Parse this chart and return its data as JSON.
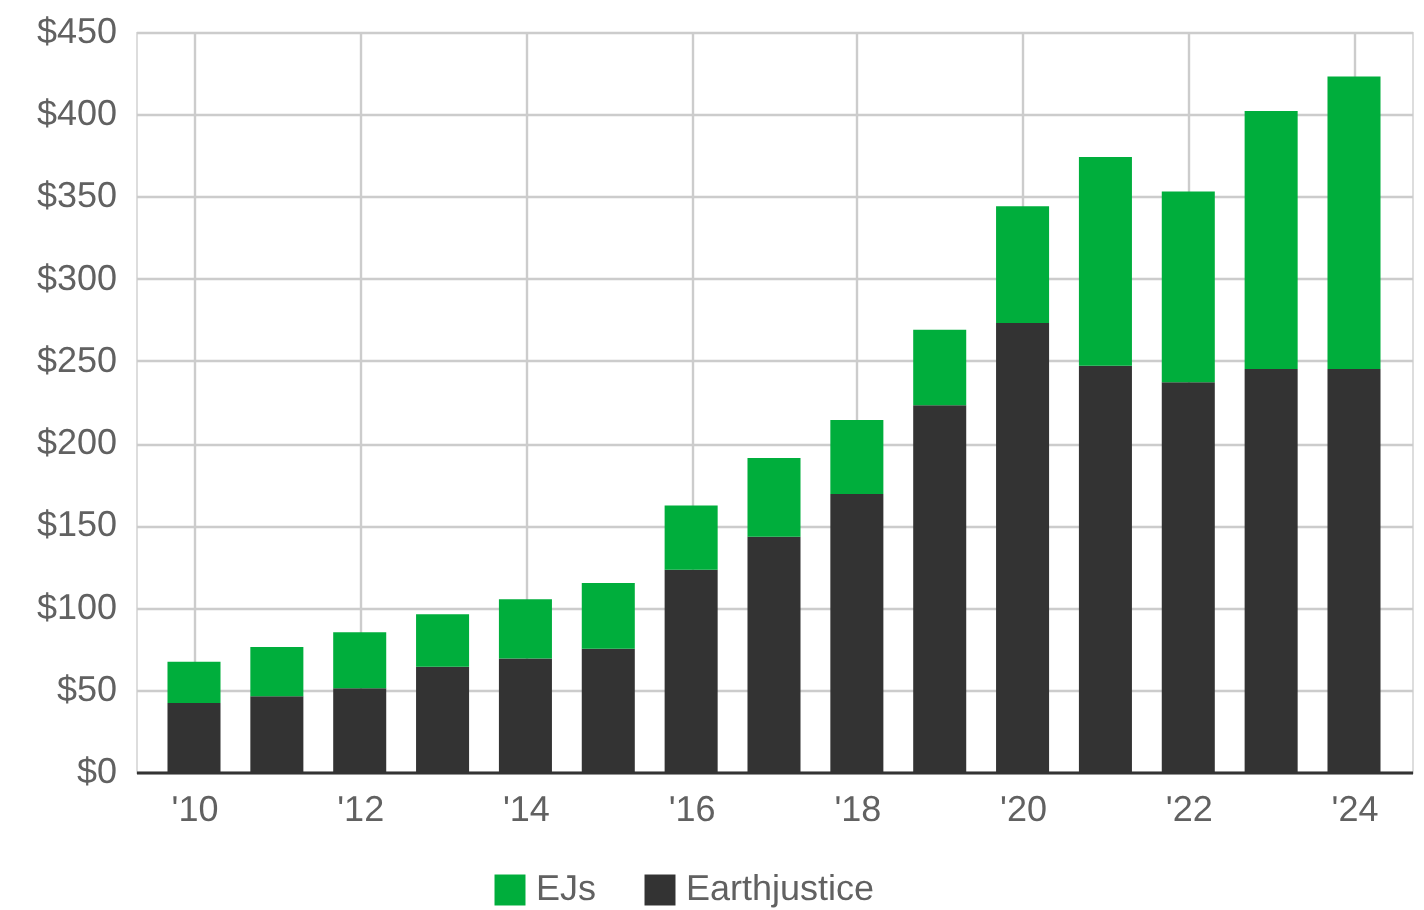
{
  "chart_data": {
    "type": "bar",
    "stacked": true,
    "x": [
      2010,
      2011,
      2012,
      2013,
      2014,
      2015,
      2016,
      2017,
      2018,
      2019,
      2020,
      2021,
      2022,
      2023,
      2024
    ],
    "series": [
      {
        "name": "Earthjustice",
        "color": "#333333",
        "values": [
          42,
          46,
          51,
          64,
          69,
          75,
          123,
          143,
          169,
          223,
          273,
          247,
          237,
          245,
          245
        ]
      },
      {
        "name": "EJs",
        "color": "#00ae3c",
        "values": [
          25,
          30,
          34,
          32,
          36,
          40,
          39,
          48,
          45,
          46,
          71,
          127,
          116,
          157,
          178
        ]
      }
    ],
    "xlim": [
      2009.3,
      2024.7
    ],
    "xticks": [
      {
        "value": 2010,
        "label": "'10"
      },
      {
        "value": 2012,
        "label": "'12"
      },
      {
        "value": 2014,
        "label": "'14"
      },
      {
        "value": 2016,
        "label": "'16"
      },
      {
        "value": 2018,
        "label": "'18"
      },
      {
        "value": 2020,
        "label": "'20"
      },
      {
        "value": 2022,
        "label": "'22"
      },
      {
        "value": 2024,
        "label": "'24"
      }
    ],
    "ylim": [
      0,
      450
    ],
    "yticks": [
      {
        "value": 0,
        "label": "$0"
      },
      {
        "value": 50,
        "label": "$50"
      },
      {
        "value": 100,
        "label": "$100"
      },
      {
        "value": 150,
        "label": "$150"
      },
      {
        "value": 200,
        "label": "$200"
      },
      {
        "value": 250,
        "label": "$250"
      },
      {
        "value": 300,
        "label": "$300"
      },
      {
        "value": 350,
        "label": "$350"
      },
      {
        "value": 400,
        "label": "$400"
      },
      {
        "value": 450,
        "label": "$450"
      }
    ],
    "grid": true,
    "legend": "bottom"
  }
}
